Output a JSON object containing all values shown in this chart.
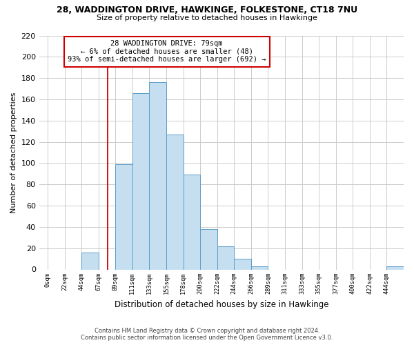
{
  "title": "28, WADDINGTON DRIVE, HAWKINGE, FOLKESTONE, CT18 7NU",
  "subtitle": "Size of property relative to detached houses in Hawkinge",
  "xlabel": "Distribution of detached houses by size in Hawkinge",
  "ylabel": "Number of detached properties",
  "bar_color": "#c5dff0",
  "bar_edge_color": "#5b9dc9",
  "annotation_box_edge": "#cc0000",
  "annotation_line1": "28 WADDINGTON DRIVE: 79sqm",
  "annotation_line2": "← 6% of detached houses are smaller (48)",
  "annotation_line3": "93% of semi-detached houses are larger (692) →",
  "bin_labels": [
    "0sqm",
    "22sqm",
    "44sqm",
    "67sqm",
    "89sqm",
    "111sqm",
    "133sqm",
    "155sqm",
    "178sqm",
    "200sqm",
    "222sqm",
    "244sqm",
    "266sqm",
    "289sqm",
    "311sqm",
    "333sqm",
    "355sqm",
    "377sqm",
    "400sqm",
    "422sqm",
    "444sqm"
  ],
  "bar_heights": [
    0,
    0,
    16,
    0,
    99,
    166,
    176,
    127,
    89,
    38,
    22,
    10,
    3,
    0,
    0,
    0,
    0,
    0,
    0,
    0,
    3
  ],
  "ylim": [
    0,
    220
  ],
  "yticks": [
    0,
    20,
    40,
    60,
    80,
    100,
    120,
    140,
    160,
    180,
    200,
    220
  ],
  "property_sqm": 79,
  "footnote1": "Contains HM Land Registry data © Crown copyright and database right 2024.",
  "footnote2": "Contains public sector information licensed under the Open Government Licence v3.0.",
  "background_color": "#ffffff",
  "grid_color": "#cccccc"
}
